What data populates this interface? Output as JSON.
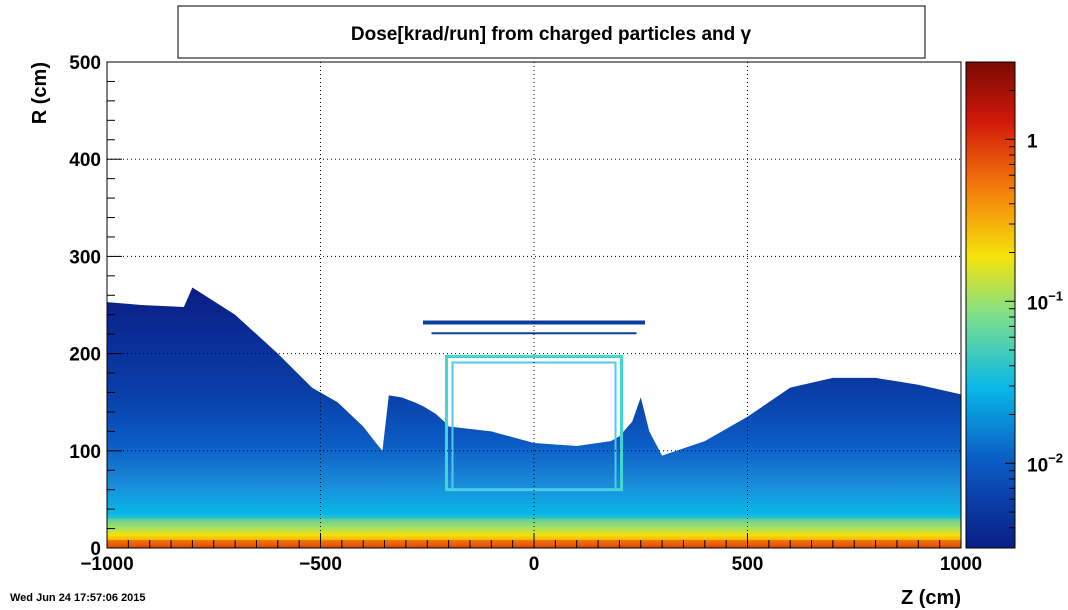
{
  "chart_data": {
    "type": "heatmap",
    "title": "Dose[krad/run] from charged particles and γ",
    "xlabel": "Z (cm)",
    "ylabel": "R (cm)",
    "xlim": [
      -1000,
      1000
    ],
    "ylim": [
      0,
      500
    ],
    "x_ticks": [
      "−1000",
      "−500",
      "0",
      "500",
      "1000"
    ],
    "x_tick_values": [
      -1000,
      -500,
      0,
      500,
      1000
    ],
    "y_ticks": [
      "0",
      "100",
      "200",
      "300",
      "400",
      "500"
    ],
    "y_tick_values": [
      0,
      100,
      200,
      300,
      400,
      500
    ],
    "grid": true,
    "colorbar": {
      "scale": "log",
      "range": [
        0.003,
        3
      ],
      "labels": [
        "10",
        "10",
        "1"
      ],
      "label_exponents": [
        "−2",
        "−1",
        ""
      ],
      "label_values": [
        0.01,
        0.1,
        1
      ]
    },
    "outer_envelope_R_vs_Z": {
      "z": [
        -1000,
        -920,
        -820,
        -800,
        -700,
        -600,
        -520,
        -460,
        -400,
        -370,
        -355,
        -340,
        -310,
        -280,
        -260,
        -230,
        -210
      ],
      "r": [
        253,
        250,
        248,
        268,
        240,
        200,
        165,
        150,
        125,
        108,
        100,
        157,
        155,
        150,
        146,
        138,
        130
      ]
    },
    "inner_envelope_R_vs_Z": {
      "z": [
        -200,
        -100,
        0,
        100,
        180,
        200,
        230,
        250,
        270,
        300,
        400,
        500,
        600,
        700,
        800,
        900,
        1000
      ],
      "r": [
        125,
        120,
        108,
        105,
        110,
        115,
        130,
        155,
        120,
        95,
        110,
        135,
        165,
        175,
        175,
        168,
        158
      ]
    },
    "shapes": [
      {
        "name": "outer-barrel-line",
        "z": [
          -260,
          260
        ],
        "r": 232
      },
      {
        "name": "inner-barrel-line",
        "z": [
          -240,
          240
        ],
        "r": 221
      },
      {
        "name": "inner-detector-frame",
        "z": [
          -205,
          205
        ],
        "r": [
          60,
          197
        ]
      }
    ],
    "high_dose_band_R": [
      0,
      30
    ]
  },
  "footer": {
    "timestamp": "Wed Jun 24 17:57:06 2015"
  },
  "colors": {
    "cmap": [
      "#0a1e86",
      "#0b5cc4",
      "#08b8e8",
      "#7fe08a",
      "#f4e20a",
      "#f57c0a",
      "#d0180a",
      "#7a0a02"
    ],
    "frame": "#000000",
    "grid": "#000000",
    "background": "#ffffff"
  }
}
